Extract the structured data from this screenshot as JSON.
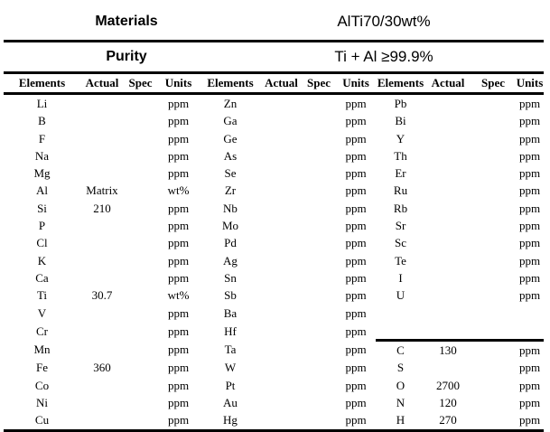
{
  "banner": {
    "materials_label": "Materials",
    "materials_value": "AlTi70/30wt%",
    "purity_label": "Purity",
    "purity_value": "Ti + Al ≥99.9%"
  },
  "table": {
    "column_headers": [
      "Elements",
      "Actual",
      "Spec",
      "Units",
      "Elements",
      "Actual",
      "Spec",
      "Units",
      "Elements",
      "Actual",
      "Spec",
      "Units"
    ],
    "section3_divider_after_row_index": 13,
    "rows": [
      [
        "Li",
        "",
        "",
        "ppm",
        "Zn",
        "",
        "",
        "ppm",
        "Pb",
        "",
        "",
        "ppm"
      ],
      [
        "B",
        "",
        "",
        "ppm",
        "Ga",
        "",
        "",
        "ppm",
        "Bi",
        "",
        "",
        "ppm"
      ],
      [
        "F",
        "",
        "",
        "ppm",
        "Ge",
        "",
        "",
        "ppm",
        "Y",
        "",
        "",
        "ppm"
      ],
      [
        "Na",
        "",
        "",
        "ppm",
        "As",
        "",
        "",
        "ppm",
        "Th",
        "",
        "",
        "ppm"
      ],
      [
        "Mg",
        "",
        "",
        "ppm",
        "Se",
        "",
        "",
        "ppm",
        "Er",
        "",
        "",
        "ppm"
      ],
      [
        "Al",
        "Matrix",
        "",
        "wt%",
        "Zr",
        "",
        "",
        "ppm",
        "Ru",
        "",
        "",
        "ppm"
      ],
      [
        "Si",
        "210",
        "",
        "ppm",
        "Nb",
        "",
        "",
        "ppm",
        "Rb",
        "",
        "",
        "ppm"
      ],
      [
        "P",
        "",
        "",
        "ppm",
        "Mo",
        "",
        "",
        "ppm",
        "Sr",
        "",
        "",
        "ppm"
      ],
      [
        "Cl",
        "",
        "",
        "ppm",
        "Pd",
        "",
        "",
        "ppm",
        "Sc",
        "",
        "",
        "ppm"
      ],
      [
        "K",
        "",
        "",
        "ppm",
        "Ag",
        "",
        "",
        "ppm",
        "Te",
        "",
        "",
        "ppm"
      ],
      [
        "Ca",
        "",
        "",
        "ppm",
        "Sn",
        "",
        "",
        "ppm",
        "I",
        "",
        "",
        "ppm"
      ],
      [
        "Ti",
        "30.7",
        "",
        "wt%",
        "Sb",
        "",
        "",
        "ppm",
        "U",
        "",
        "",
        "ppm"
      ],
      [
        "V",
        "",
        "",
        "ppm",
        "Ba",
        "",
        "",
        "ppm",
        "",
        "",
        "",
        ""
      ],
      [
        "Cr",
        "",
        "",
        "ppm",
        "Hf",
        "",
        "",
        "ppm",
        "",
        "",
        "",
        ""
      ],
      [
        "Mn",
        "",
        "",
        "ppm",
        "Ta",
        "",
        "",
        "ppm",
        "C",
        "130",
        "",
        "ppm"
      ],
      [
        "Fe",
        "360",
        "",
        "ppm",
        "W",
        "",
        "",
        "ppm",
        "S",
        "",
        "",
        "ppm"
      ],
      [
        "Co",
        "",
        "",
        "ppm",
        "Pt",
        "",
        "",
        "ppm",
        "O",
        "2700",
        "",
        "ppm"
      ],
      [
        "Ni",
        "",
        "",
        "ppm",
        "Au",
        "",
        "",
        "ppm",
        "N",
        "120",
        "",
        "ppm"
      ],
      [
        "Cu",
        "",
        "",
        "ppm",
        "Hg",
        "",
        "",
        "ppm",
        "H",
        "270",
        "",
        "ppm"
      ]
    ]
  },
  "colors": {
    "text": "#000000",
    "background": "#ffffff",
    "rule": "#000000"
  }
}
